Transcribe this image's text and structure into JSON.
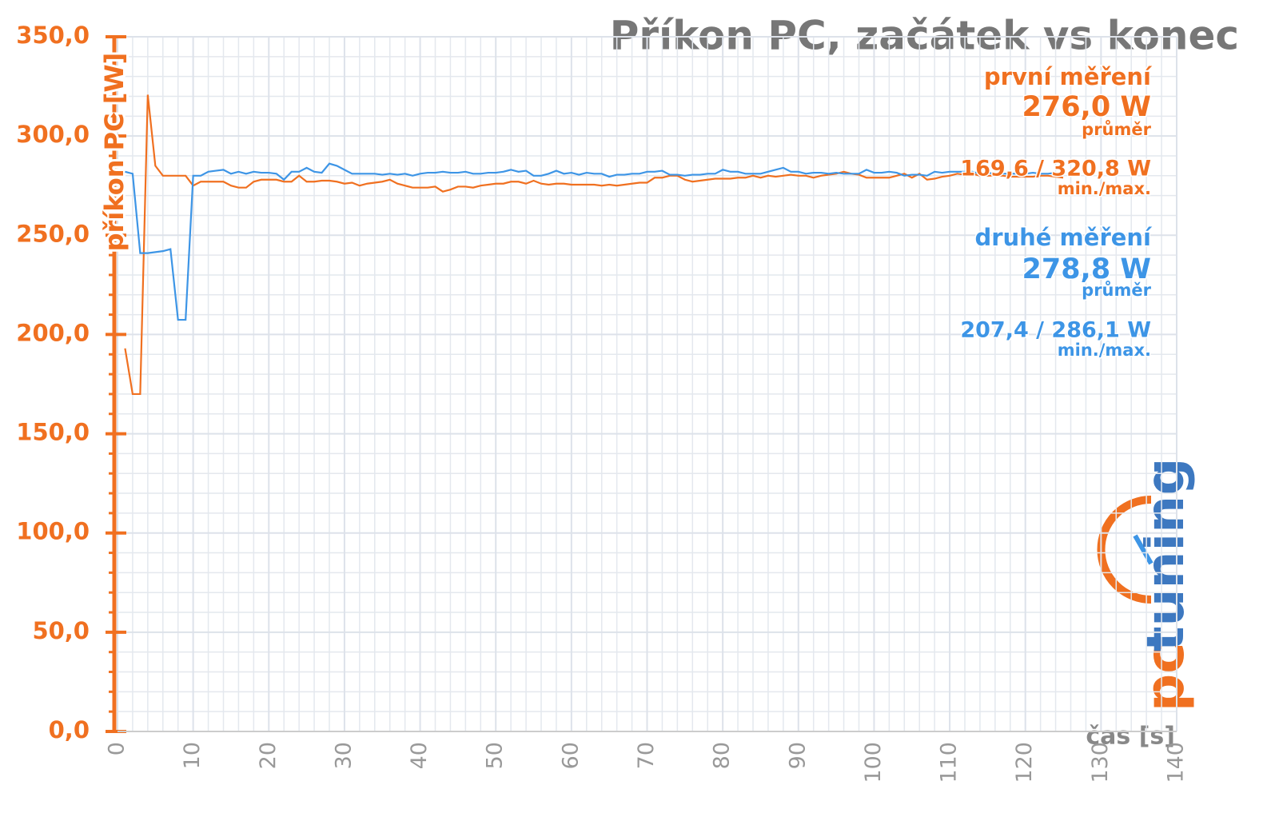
{
  "chart_data": {
    "type": "line",
    "title": "Příkon PC, začátek vs konec",
    "ylabel": "příkon PC [W]",
    "xlabel": "čas [s]",
    "xlim": [
      0,
      140
    ],
    "xticks": [
      0,
      10,
      20,
      30,
      40,
      50,
      60,
      70,
      80,
      90,
      100,
      110,
      120,
      130,
      140
    ],
    "ylim": [
      0,
      350
    ],
    "yticks": [
      {
        "value": 0,
        "label": "0,0"
      },
      {
        "value": 50,
        "label": "50,0"
      },
      {
        "value": 100,
        "label": "100,0"
      },
      {
        "value": 150,
        "label": "150,0"
      },
      {
        "value": 200,
        "label": "200,0"
      },
      {
        "value": 250,
        "label": "250,0"
      },
      {
        "value": 300,
        "label": "300,0"
      },
      {
        "value": 350,
        "label": "350,0"
      }
    ],
    "grid": true,
    "axis_color": "#f07020",
    "x": [
      1,
      2,
      3,
      4,
      5,
      6,
      7,
      8,
      9,
      10,
      11,
      12,
      13,
      14,
      15,
      16,
      17,
      18,
      19,
      20,
      21,
      22,
      23,
      24,
      25,
      26,
      27,
      28,
      29,
      30,
      31,
      32,
      33,
      34,
      35,
      36,
      37,
      38,
      39,
      40,
      41,
      42,
      43,
      44,
      45,
      46,
      47,
      48,
      49,
      50,
      51,
      52,
      53,
      54,
      55,
      56,
      57,
      58,
      59,
      60,
      61,
      62,
      63,
      64,
      65,
      66,
      67,
      68,
      69,
      70,
      71,
      72,
      73,
      74,
      75,
      76,
      77,
      78,
      79,
      80,
      81,
      82,
      83,
      84,
      85,
      86,
      87,
      88,
      89,
      90,
      91,
      92,
      93,
      94,
      95,
      96,
      97,
      98,
      99,
      100,
      101,
      102,
      103,
      104,
      105,
      106,
      107,
      108,
      109,
      110,
      111,
      112,
      113,
      114,
      115,
      116,
      117,
      118,
      119,
      120,
      121,
      122,
      123,
      124,
      125
    ],
    "series": [
      {
        "name": "první měření",
        "color": "#f07020",
        "values": [
          193,
          170,
          170,
          320.8,
          285,
          280,
          280,
          280,
          280,
          275,
          277,
          277,
          277,
          277,
          275,
          274,
          274,
          277,
          278,
          278,
          278,
          277,
          277,
          280,
          277,
          277,
          277.5,
          277.5,
          277,
          276,
          276.5,
          275,
          276,
          276.5,
          277,
          278,
          276,
          275,
          274,
          274,
          274,
          274.5,
          272,
          273,
          274.5,
          274.5,
          274,
          275,
          275.5,
          276,
          276,
          277,
          277,
          276,
          277.5,
          276,
          275.5,
          276,
          276,
          275.5,
          275.5,
          275.5,
          275.5,
          275,
          275.5,
          275,
          275.5,
          276,
          276.5,
          276.5,
          279,
          279,
          280,
          280,
          278,
          277,
          277.5,
          278,
          278.5,
          278.5,
          278.5,
          279,
          279,
          280,
          279,
          280,
          279.5,
          280,
          280.5,
          280,
          280,
          279,
          280,
          280.5,
          281,
          282,
          281,
          280.5,
          279,
          279,
          279,
          279,
          280,
          281,
          279,
          281,
          278,
          278.5,
          279.5,
          280,
          281,
          280.5,
          281,
          280,
          280,
          280,
          280,
          279.5,
          279.5,
          279.5,
          279.5,
          280,
          280,
          279.5,
          279
        ]
      },
      {
        "name": "druhé měření",
        "color": "#3d95e6",
        "values": [
          282,
          281,
          241,
          241,
          241.5,
          242,
          243,
          207.4,
          207.4,
          280,
          280,
          282,
          282.5,
          283,
          281,
          282,
          281,
          282,
          281.5,
          281.5,
          281,
          278,
          282,
          282,
          284,
          282,
          281.5,
          286.1,
          285,
          283,
          281,
          281,
          281,
          281,
          280.5,
          281,
          280.5,
          281,
          280,
          281,
          281.5,
          281.5,
          282,
          281.5,
          281.5,
          282,
          281,
          281,
          281.5,
          281.5,
          282,
          283,
          282,
          282.5,
          280,
          280,
          281,
          282.5,
          281,
          281.5,
          280.5,
          281.5,
          281,
          281,
          279.5,
          280.5,
          280.5,
          281,
          281,
          282,
          282,
          282.5,
          280.5,
          280.5,
          280,
          280.5,
          280.5,
          281,
          281,
          283,
          282,
          282,
          281,
          281,
          281,
          282,
          283,
          284,
          282,
          282,
          281,
          281.5,
          281.5,
          281,
          281.5,
          281,
          281,
          281,
          283,
          281.5,
          281.5,
          282,
          281.5,
          280,
          280.5,
          280.5,
          280,
          282,
          281.5,
          282,
          282,
          282,
          282,
          281,
          281.5,
          281,
          281,
          281,
          281,
          281,
          281.5,
          281,
          281,
          281.5,
          281
        ]
      }
    ],
    "annotations": [
      {
        "text": "první měření",
        "color": "#f07020"
      },
      {
        "text": "276,0 W",
        "color": "#f07020"
      },
      {
        "text": "průměr",
        "color": "#f07020"
      },
      {
        "text": "169,6 / 320,8 W",
        "color": "#f07020"
      },
      {
        "text": "min./max.",
        "color": "#f07020"
      },
      {
        "text": "druhé měření",
        "color": "#3d95e6"
      },
      {
        "text": "278,8 W",
        "color": "#3d95e6"
      },
      {
        "text": "průměr",
        "color": "#3d95e6"
      },
      {
        "text": "207,4 / 286,1 W",
        "color": "#3d95e6"
      },
      {
        "text": "min./max.",
        "color": "#3d95e6"
      }
    ],
    "logo": {
      "pc": "pc",
      "tuning": "tuning"
    }
  }
}
